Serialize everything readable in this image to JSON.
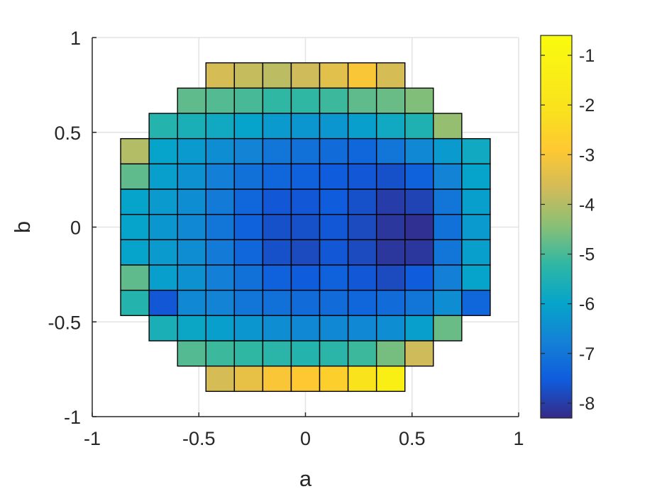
{
  "chart_data": {
    "type": "heatmap",
    "title": "",
    "xlabel": "a",
    "ylabel": "b",
    "xlim": [
      -1,
      1
    ],
    "ylim": [
      -1,
      1
    ],
    "x_ticks": [
      -1,
      -0.5,
      0,
      0.5,
      1
    ],
    "x_tick_labels": [
      "-1",
      "-0.5",
      "0",
      "0.5",
      "1"
    ],
    "y_ticks": [
      -1,
      -0.5,
      0,
      0.5,
      1
    ],
    "y_tick_labels": [
      "-1",
      "-0.5",
      "0",
      "0.5",
      "1"
    ],
    "grid": true,
    "colormap": "parula",
    "colorbar": {
      "position": "right",
      "limits": [
        -8.3,
        -0.6
      ],
      "ticks": [
        -1,
        -2,
        -3,
        -4,
        -5,
        -6,
        -7,
        -8
      ],
      "tick_labels": [
        "-1",
        "-2",
        "-3",
        "-4",
        "-5",
        "-6",
        "-7",
        "-8"
      ]
    },
    "cell_size": [
      0.1333,
      0.1333
    ],
    "x_edges": [
      -0.8667,
      -0.7333,
      -0.6,
      -0.4667,
      -0.3333,
      -0.2,
      -0.0667,
      0.0667,
      0.2,
      0.3333,
      0.4667,
      0.6,
      0.7333,
      0.8667
    ],
    "y_edges": [
      0.8667,
      0.7333,
      0.6,
      0.4667,
      0.3333,
      0.2,
      0.0667,
      -0.0667,
      -0.2,
      -0.3333,
      -0.4667,
      -0.6,
      -0.7333,
      -0.8667
    ],
    "values": [
      [
        null,
        null,
        null,
        -3.6,
        -3.8,
        -3.9,
        -3.7,
        -3.4,
        -3.0,
        -3.6,
        null,
        null,
        null
      ],
      [
        null,
        null,
        -4.8,
        -4.9,
        -5.0,
        -5.2,
        -5.2,
        -5.1,
        -4.8,
        -4.7,
        -4.5,
        null,
        null
      ],
      [
        null,
        -5.4,
        -5.6,
        -5.8,
        -6.0,
        -6.2,
        -6.3,
        -6.3,
        -6.1,
        -5.8,
        -5.5,
        -4.3,
        null
      ],
      [
        -4.0,
        -6.0,
        -6.2,
        -6.5,
        -6.7,
        -7.0,
        -7.1,
        -7.2,
        -7.3,
        -7.0,
        -6.6,
        -6.2,
        -5.8
      ],
      [
        -4.8,
        -6.1,
        -6.4,
        -6.8,
        -7.1,
        -7.3,
        -7.4,
        -7.5,
        -7.6,
        -7.7,
        -7.4,
        -6.7,
        -6.0
      ],
      [
        -6.0,
        -6.2,
        -6.5,
        -6.9,
        -7.3,
        -7.6,
        -7.6,
        -7.5,
        -7.7,
        -8.0,
        -7.9,
        -7.0,
        -6.1
      ],
      [
        -6.0,
        -6.3,
        -6.6,
        -7.0,
        -7.4,
        -7.7,
        -7.7,
        -7.6,
        -7.8,
        -8.1,
        -8.2,
        -7.1,
        -6.2
      ],
      [
        -6.0,
        -6.2,
        -6.5,
        -6.9,
        -7.3,
        -7.7,
        -7.8,
        -7.6,
        -7.8,
        -8.1,
        -8.1,
        -7.0,
        -6.1
      ],
      [
        -4.8,
        -6.1,
        -6.4,
        -6.8,
        -7.1,
        -7.4,
        -7.5,
        -7.4,
        -7.6,
        -7.8,
        -7.5,
        -6.8,
        -6.0
      ],
      [
        -5.4,
        -7.6,
        -6.6,
        -6.7,
        -7.0,
        -7.1,
        -7.2,
        -7.2,
        -7.3,
        -7.2,
        -7.0,
        -6.5,
        -7.3
      ],
      [
        null,
        -5.6,
        -5.9,
        -6.1,
        -6.3,
        -6.5,
        -6.6,
        -6.6,
        -6.6,
        -6.5,
        -6.1,
        -4.7,
        null
      ],
      [
        null,
        null,
        -4.9,
        -5.1,
        -5.2,
        -5.3,
        -5.4,
        -5.3,
        -5.1,
        -4.6,
        -3.7,
        null,
        null
      ],
      [
        null,
        null,
        null,
        -3.6,
        -3.3,
        -3.0,
        -2.9,
        -2.7,
        -2.0,
        -1.3,
        null,
        null,
        null
      ]
    ]
  }
}
